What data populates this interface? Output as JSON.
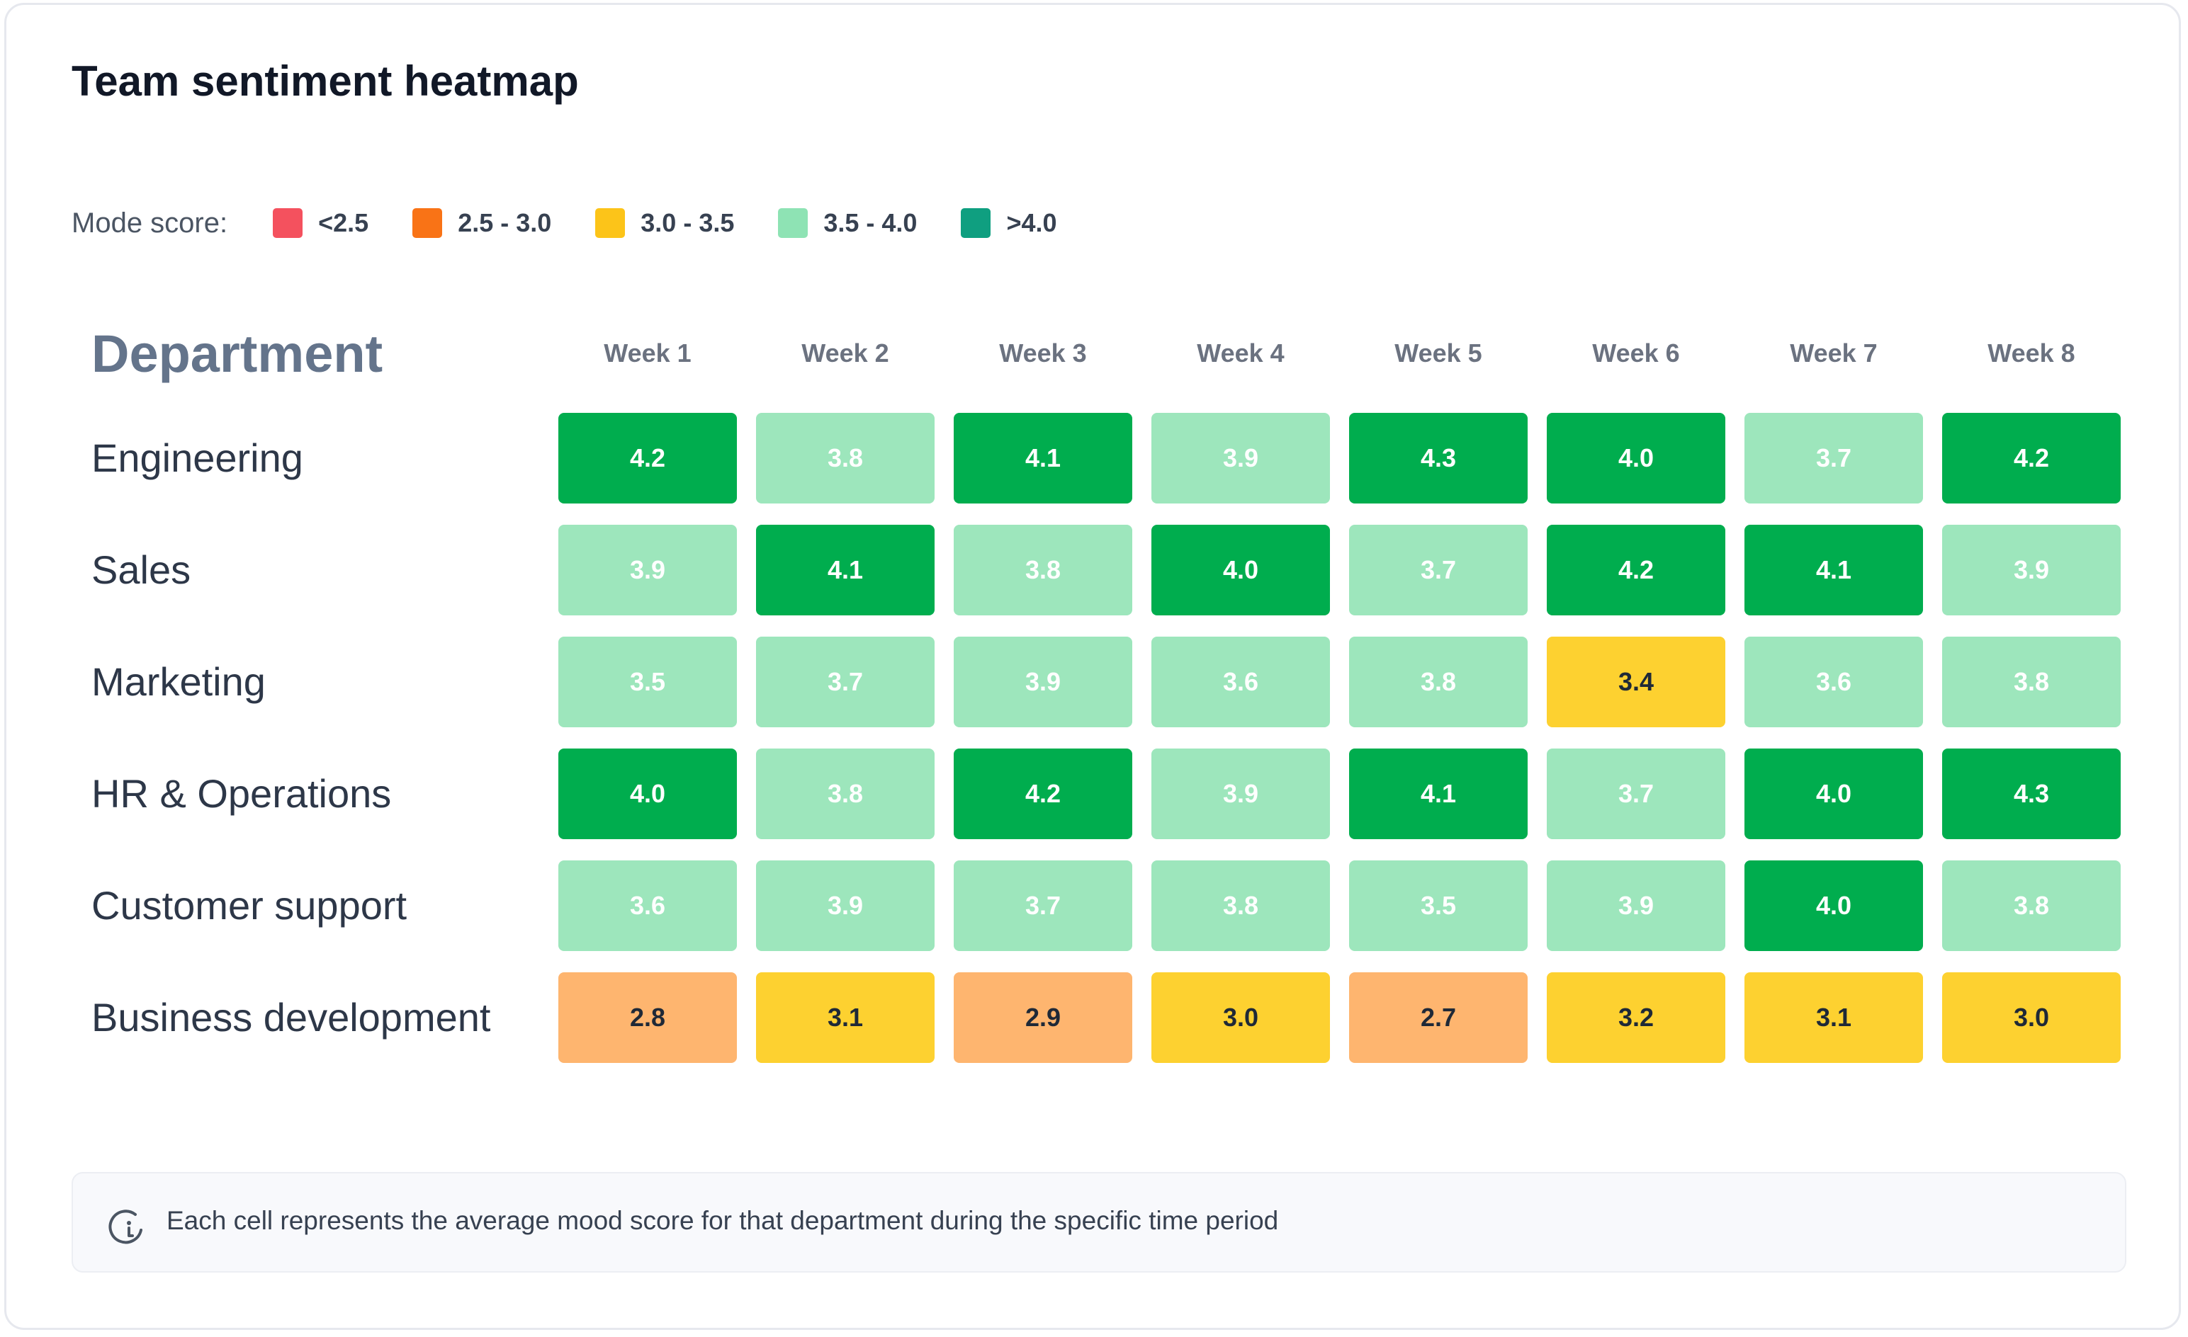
{
  "title": "Team sentiment heatmap",
  "legend": {
    "label": "Mode score:",
    "items": [
      {
        "label": "<2.5",
        "color": "#f4515e"
      },
      {
        "label": "2.5 - 3.0",
        "color": "#f97316"
      },
      {
        "label": "3.0 - 3.5",
        "color": "#fcc419"
      },
      {
        "label": "3.5 - 4.0",
        "color": "#8ee3b4"
      },
      {
        "label": ">4.0",
        "color": "#0f9f80"
      }
    ]
  },
  "note": {
    "icon": "info-icon",
    "text": "Each cell represents the average mood score for that department during the specific time period"
  },
  "cell_colors": {
    "dark_green": "#00ad4e",
    "light_green": "#9de6bc",
    "yellow": "#fdd130",
    "orange": "#feb56f"
  },
  "chart_data": {
    "type": "heatmap",
    "title": "Team sentiment heatmap",
    "row_header": "Department",
    "columns": [
      "Week 1",
      "Week 2",
      "Week 3",
      "Week 4",
      "Week 5",
      "Week 6",
      "Week 7",
      "Week 8"
    ],
    "rows": [
      {
        "name": "Engineering",
        "values": [
          "4.2",
          "3.8",
          "4.1",
          "3.9",
          "4.3",
          "4.0",
          "3.7",
          "4.2"
        ]
      },
      {
        "name": "Sales",
        "values": [
          "3.9",
          "4.1",
          "3.8",
          "4.0",
          "3.7",
          "4.2",
          "4.1",
          "3.9"
        ]
      },
      {
        "name": "Marketing",
        "values": [
          "3.5",
          "3.7",
          "3.9",
          "3.6",
          "3.8",
          "3.4",
          "3.6",
          "3.8"
        ]
      },
      {
        "name": "HR & Operations",
        "values": [
          "4.0",
          "3.8",
          "4.2",
          "3.9",
          "4.1",
          "3.7",
          "4.0",
          "4.3"
        ]
      },
      {
        "name": "Customer support",
        "values": [
          "3.6",
          "3.9",
          "3.7",
          "3.8",
          "3.5",
          "3.9",
          "4.0",
          "3.8"
        ]
      },
      {
        "name": "Business development",
        "values": [
          "2.8",
          "3.1",
          "2.9",
          "3.0",
          "2.7",
          "3.2",
          "3.1",
          "3.0"
        ]
      }
    ]
  }
}
